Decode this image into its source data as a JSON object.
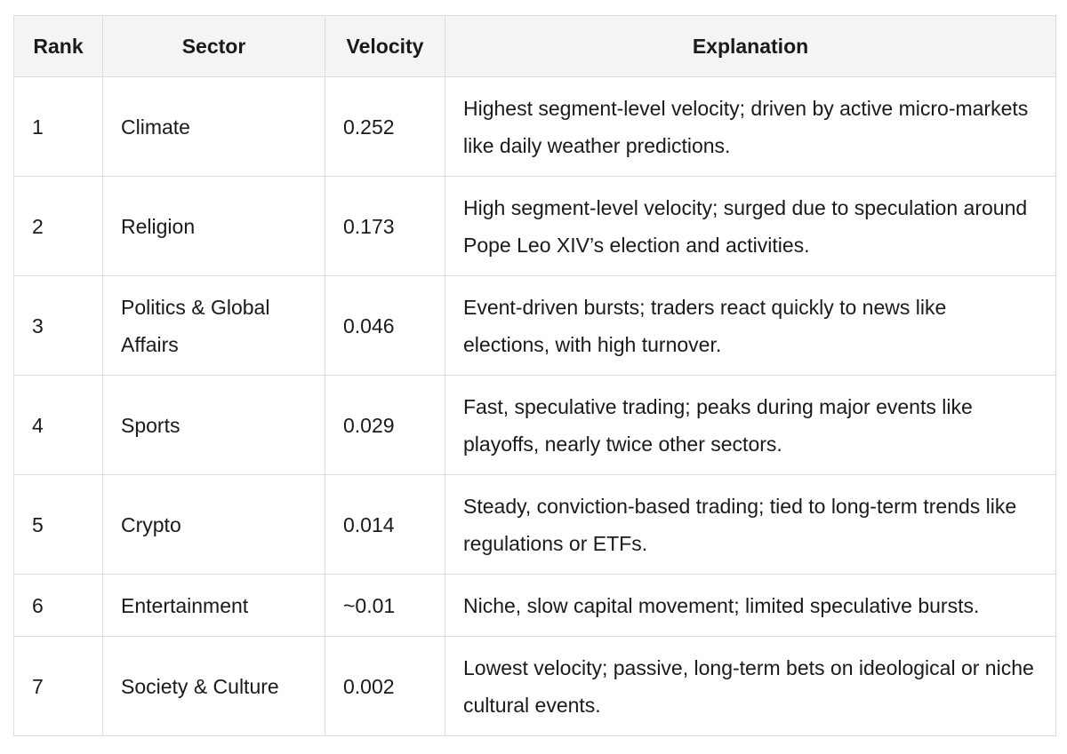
{
  "table": {
    "headers": {
      "rank": "Rank",
      "sector": "Sector",
      "velocity": "Velocity",
      "explanation": "Explanation"
    },
    "rows": [
      {
        "rank": "1",
        "sector": "Climate",
        "velocity": "0.252",
        "explanation": "Highest segment-level velocity; driven by active micro-markets like daily weather predictions."
      },
      {
        "rank": "2",
        "sector": "Religion",
        "velocity": "0.173",
        "explanation": "High segment-level velocity; surged due to speculation around Pope Leo XIV’s election and activities."
      },
      {
        "rank": "3",
        "sector": "Politics & Global Affairs",
        "velocity": "0.046",
        "explanation": "Event-driven bursts; traders react quickly to news like elections, with high turnover."
      },
      {
        "rank": "4",
        "sector": "Sports",
        "velocity": "0.029",
        "explanation": "Fast, speculative trading; peaks during major events like playoffs, nearly twice other sectors."
      },
      {
        "rank": "5",
        "sector": "Crypto",
        "velocity": "0.014",
        "explanation": "Steady, conviction-based trading; tied to long-term trends like regulations or ETFs."
      },
      {
        "rank": "6",
        "sector": "Entertainment",
        "velocity": "~0.01",
        "explanation": "Niche, slow capital movement; limited speculative bursts."
      },
      {
        "rank": "7",
        "sector": "Society & Culture",
        "velocity": "0.002",
        "explanation": "Lowest velocity; passive, long-term bets on ideological or niche cultural events."
      }
    ]
  }
}
